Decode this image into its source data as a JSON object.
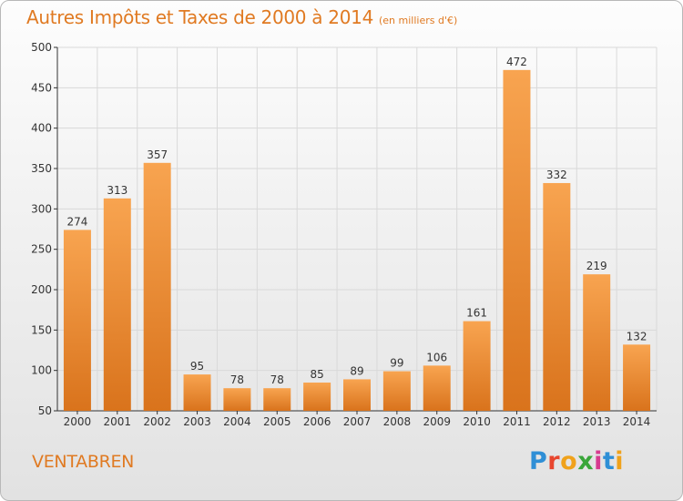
{
  "title": "Autres Impôts et Taxes de 2000 à 2014",
  "unit": "(en milliers d'€)",
  "town": "VENTABREN",
  "logo": {
    "text": "Proxiti",
    "letters": [
      "P",
      "r",
      "o",
      "x",
      "i",
      "t",
      "i"
    ],
    "colors": [
      "#2f8fd6",
      "#e8462e",
      "#f0a21b",
      "#3aa63a",
      "#d63b8f",
      "#2f8fd6",
      "#f0a21b"
    ]
  },
  "colors": {
    "bar_top": "#f8a450",
    "bar_bottom": "#d9731c",
    "text": "#e07a22",
    "axis": "#333333",
    "grid": "#d9d9d9"
  },
  "chart_data": {
    "type": "bar",
    "categories": [
      "2000",
      "2001",
      "2002",
      "2003",
      "2004",
      "2005",
      "2006",
      "2007",
      "2008",
      "2009",
      "2010",
      "2011",
      "2012",
      "2013",
      "2014"
    ],
    "values": [
      274,
      313,
      357,
      95,
      78,
      78,
      85,
      89,
      99,
      106,
      161,
      472,
      332,
      219,
      132
    ],
    "ylim": [
      50,
      500
    ],
    "yticks": [
      50,
      100,
      150,
      200,
      250,
      300,
      350,
      400,
      450,
      500
    ],
    "grid": true,
    "data_labels": true
  }
}
